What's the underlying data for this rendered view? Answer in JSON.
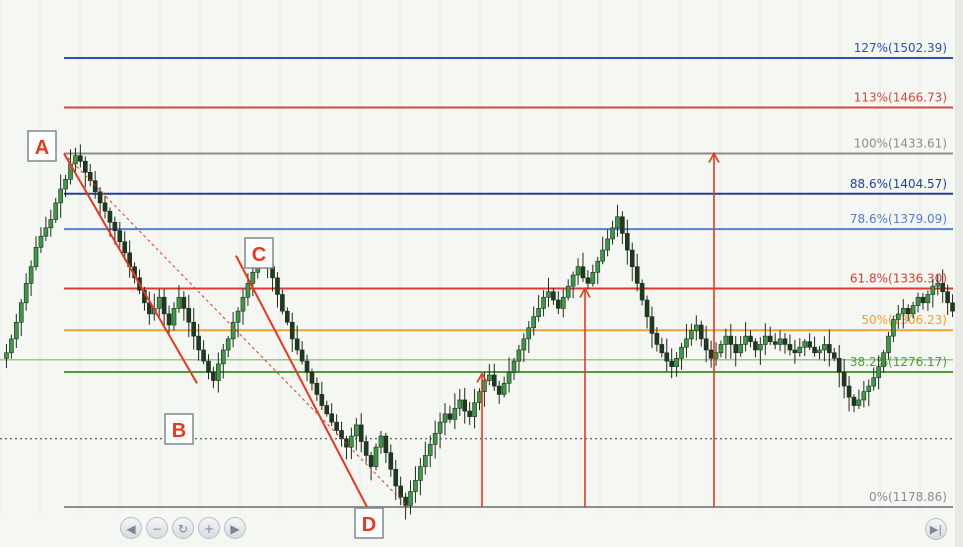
{
  "chart_data": {
    "type": "candlestick",
    "ylim": [
      1150,
      1540
    ],
    "levels": [
      {
        "label": "127%(1502.39)",
        "value": 1502.39,
        "color": "#2f4fb5"
      },
      {
        "label": "113%(1466.73)",
        "value": 1466.73,
        "color": "#d9473f"
      },
      {
        "label": "100%(1433.61)",
        "value": 1433.61,
        "color": "#8d8d8d"
      },
      {
        "label": "88.6%(1404.57)",
        "value": 1404.57,
        "color": "#243f9a"
      },
      {
        "label": "78.6%(1379.09)",
        "value": 1379.09,
        "color": "#4f7fd6"
      },
      {
        "label": "61.8%(1336.30)",
        "value": 1336.3,
        "color": "#e03a30"
      },
      {
        "label": "50%(1306.23)",
        "value": 1306.23,
        "color": "#f4a02e"
      },
      {
        "label": "38.2%(1276.17)",
        "value": 1276.17,
        "color": "#4f9a3a"
      },
      {
        "label": "0%(1178.86)",
        "value": 1178.86,
        "color": "#8d8d8d"
      }
    ],
    "extra_level": {
      "value": 1285,
      "color": "#9cc58f"
    },
    "dotted_level": {
      "value": 1228,
      "color": "#333333"
    },
    "points": [
      {
        "label": "A",
        "value": 1433.61
      },
      {
        "label": "B",
        "value": 1268
      },
      {
        "label": "C",
        "value": 1360
      },
      {
        "label": "D",
        "value": 1178.86
      }
    ],
    "closes": [
      1290,
      1300,
      1312,
      1326,
      1340,
      1352,
      1366,
      1374,
      1380,
      1386,
      1398,
      1408,
      1415,
      1426,
      1432,
      1428,
      1420,
      1414,
      1406,
      1398,
      1392,
      1384,
      1378,
      1370,
      1362,
      1352,
      1344,
      1335,
      1326,
      1318,
      1322,
      1330,
      1318,
      1310,
      1322,
      1330,
      1322,
      1312,
      1302,
      1292,
      1284,
      1276,
      1270,
      1282,
      1292,
      1300,
      1312,
      1320,
      1330,
      1340,
      1348,
      1356,
      1360,
      1352,
      1344,
      1332,
      1320,
      1312,
      1300,
      1292,
      1284,
      1276,
      1268,
      1260,
      1252,
      1246,
      1240,
      1234,
      1228,
      1222,
      1230,
      1238,
      1226,
      1216,
      1208,
      1222,
      1230,
      1218,
      1206,
      1194,
      1186,
      1180,
      1190,
      1198,
      1208,
      1216,
      1224,
      1232,
      1240,
      1246,
      1242,
      1250,
      1256,
      1248,
      1244,
      1254,
      1262,
      1270,
      1274,
      1266,
      1260,
      1268,
      1276,
      1284,
      1292,
      1300,
      1308,
      1316,
      1322,
      1330,
      1334,
      1328,
      1322,
      1330,
      1338,
      1346,
      1352,
      1344,
      1340,
      1348,
      1356,
      1364,
      1372,
      1380,
      1388,
      1376,
      1364,
      1352,
      1340,
      1328,
      1316,
      1304,
      1296,
      1290,
      1284,
      1280,
      1286,
      1294,
      1300,
      1306,
      1310,
      1300,
      1292,
      1286,
      1290,
      1296,
      1302,
      1296,
      1290,
      1296,
      1302,
      1298,
      1292,
      1296,
      1302,
      1298,
      1296,
      1300,
      1296,
      1292,
      1290,
      1294,
      1298,
      1294,
      1290,
      1292,
      1296,
      1290,
      1286,
      1276,
      1266,
      1258,
      1252,
      1256,
      1262,
      1266,
      1272,
      1280,
      1290,
      1302,
      1314,
      1318,
      1322,
      1318,
      1324,
      1330,
      1326,
      1332,
      1338,
      1340,
      1334,
      1326,
      1320
    ]
  },
  "nav": {
    "prev": "◀",
    "zoom_out": "−",
    "reset": "↻",
    "zoom_in": "+",
    "next": "▶",
    "end": "▶|"
  }
}
